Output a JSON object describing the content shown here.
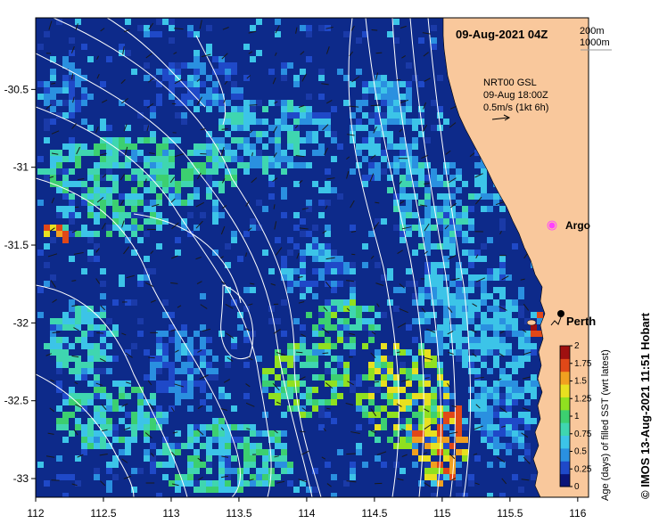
{
  "map": {
    "date_label": "09-Aug-2021 04Z",
    "depth_contour_labels": [
      "200m",
      "1000m"
    ],
    "current_info": {
      "line1": "NRT00 GSL",
      "line2": "09-Aug 18:00Z",
      "line3": "0.5m/s (1kt 6h)"
    },
    "places": [
      {
        "name": "Argo",
        "lon": 115.87,
        "lat": -31.45
      },
      {
        "name": "Perth",
        "lon": 115.86,
        "lat": -31.95
      }
    ],
    "x_ticks": [
      "112",
      "112.5",
      "113",
      "113.5",
      "114",
      "114.5",
      "115",
      "115.5",
      "116"
    ],
    "y_ticks": [
      "-30.5",
      "-31",
      "-31.5",
      "-32",
      "-32.5",
      "-33"
    ],
    "lon_range": [
      112,
      116.08
    ],
    "lat_range": [
      -33.12,
      -30.04
    ]
  },
  "colorbar": {
    "ticks": [
      "2",
      "1.75",
      "1.5",
      "1.25",
      "1",
      "0.75",
      "0.5",
      "0.25",
      "0"
    ],
    "range": [
      0,
      2
    ],
    "title": "Age (days) of filled SST (wrt latest)",
    "colors": [
      "#0a1478",
      "#1f49c8",
      "#2a90e0",
      "#3cc4e8",
      "#3fd6b0",
      "#3ccf70",
      "#90e020",
      "#e8e020",
      "#f0a020",
      "#e04818",
      "#a01010"
    ]
  },
  "credit": {
    "symbol": "©",
    "text": "IMOS 13-Aug-2021 11:51 Hobart"
  },
  "colors": {
    "land": "#f9c89c",
    "ocean_base": "#0d2a8a",
    "contour": "#ffffff"
  }
}
